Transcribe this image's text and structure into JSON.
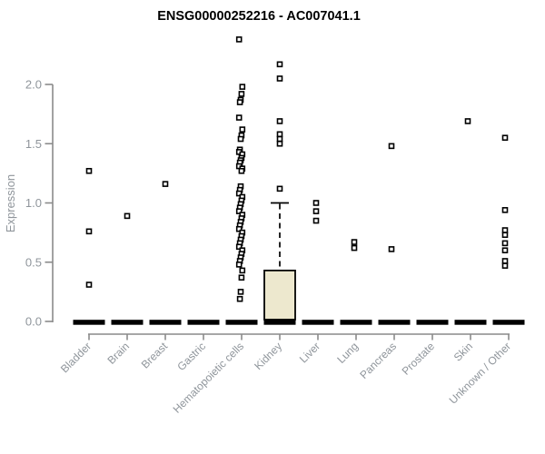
{
  "title": "ENSG00000252216 - AC007041.1",
  "chart_data": {
    "type": "box-scatter",
    "title": "ENSG00000252216 - AC007041.1",
    "xlabel": "",
    "ylabel": "Expression",
    "ylim": [
      0,
      2.4
    ],
    "yticks": [
      0,
      0.5,
      1,
      1.5,
      2
    ],
    "grid": false,
    "legend": "none",
    "categories": [
      "Bladder",
      "Brain",
      "Breast",
      "Gastric",
      "Hematopoietic cells",
      "Kidney",
      "Liver",
      "Lung",
      "Pancreas",
      "Prostate",
      "Skin",
      "Unknown / Other"
    ],
    "series": [
      {
        "category": "Bladder",
        "median": 0,
        "points": [
          1.27,
          0.76,
          0.31
        ]
      },
      {
        "category": "Brain",
        "median": 0,
        "points": [
          0.89
        ]
      },
      {
        "category": "Breast",
        "median": 0,
        "points": [
          1.16
        ]
      },
      {
        "category": "Gastric",
        "median": 0,
        "points": []
      },
      {
        "category": "Hematopoietic cells",
        "median": 0,
        "points": [
          2.38,
          1.98,
          1.92,
          1.87,
          1.85,
          1.72,
          1.62,
          1.57,
          1.54,
          1.45,
          1.43,
          1.41,
          1.38,
          1.36,
          1.34,
          1.31,
          1.29,
          1.27,
          1.14,
          1.11,
          1.08,
          1.05,
          1.02,
          0.99,
          0.96,
          0.93,
          0.9,
          0.87,
          0.84,
          0.81,
          0.78,
          0.75,
          0.72,
          0.69,
          0.66,
          0.63,
          0.6,
          0.57,
          0.54,
          0.51,
          0.48,
          0.43,
          0.37,
          0.25,
          0.19
        ]
      },
      {
        "category": "Kidney",
        "median": 0,
        "box": {
          "q1": 0,
          "q3": 0.43,
          "whisker_high": 1.0
        },
        "points": [
          2.17,
          2.05,
          1.69,
          1.58,
          1.54,
          1.5,
          1.12
        ]
      },
      {
        "category": "Liver",
        "median": 0,
        "points": [
          1.0,
          0.93,
          0.85
        ]
      },
      {
        "category": "Lung",
        "median": 0,
        "points": [
          0.67,
          0.62
        ]
      },
      {
        "category": "Pancreas",
        "median": 0,
        "points": [
          1.48,
          0.61
        ]
      },
      {
        "category": "Prostate",
        "median": 0,
        "points": []
      },
      {
        "category": "Skin",
        "median": 0,
        "points": [
          1.69
        ]
      },
      {
        "category": "Unknown / Other",
        "median": 0,
        "points": [
          1.55,
          0.94,
          0.77,
          0.73,
          0.66,
          0.6,
          0.51,
          0.47
        ]
      }
    ],
    "colors": {
      "box_fill": "#EDE8CE",
      "box_border": "#000000",
      "marker_stroke": "#000000",
      "marker_fill": "#FFFFFF",
      "zero_bar": "#000000",
      "axis_line": "#8A8A8A",
      "axis_text": "#8F959B",
      "title_text": "#000000"
    }
  }
}
